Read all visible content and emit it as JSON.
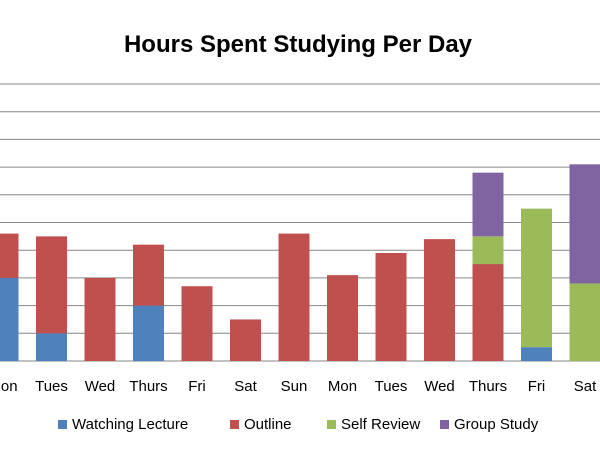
{
  "chart_data": {
    "type": "bar",
    "stacked": true,
    "title": "Hours Spent Studying Per Day",
    "xlabel": "",
    "ylabel": "",
    "categories": [
      "Mon",
      "Tues",
      "Wed",
      "Thurs",
      "Fri",
      "Sat",
      "Sun",
      "Mon",
      "Tues",
      "Wed",
      "Thurs",
      "Fri",
      "Sat"
    ],
    "ylim": [
      0,
      10
    ],
    "grid": true,
    "legend_position": "bottom",
    "series": [
      {
        "name": "Watching Lecture",
        "color": "#4f81bd",
        "values": [
          3.0,
          1.0,
          0,
          2.0,
          0,
          0,
          0,
          0,
          0,
          0,
          0,
          0.5,
          0
        ]
      },
      {
        "name": "Outline",
        "color": "#c0504d",
        "values": [
          1.6,
          3.5,
          3.0,
          2.2,
          2.7,
          1.5,
          4.6,
          3.1,
          3.9,
          4.4,
          3.5,
          0,
          0
        ]
      },
      {
        "name": "Self Review",
        "color": "#9bbb59",
        "values": [
          0,
          0,
          0,
          0,
          0,
          0,
          0,
          0,
          0,
          0,
          1.0,
          5.0,
          2.8
        ]
      },
      {
        "name": "Group Study",
        "color": "#8064a2",
        "values": [
          0,
          0,
          0,
          0,
          0,
          0,
          0,
          0,
          0,
          0,
          2.3,
          0,
          4.3
        ]
      }
    ]
  }
}
